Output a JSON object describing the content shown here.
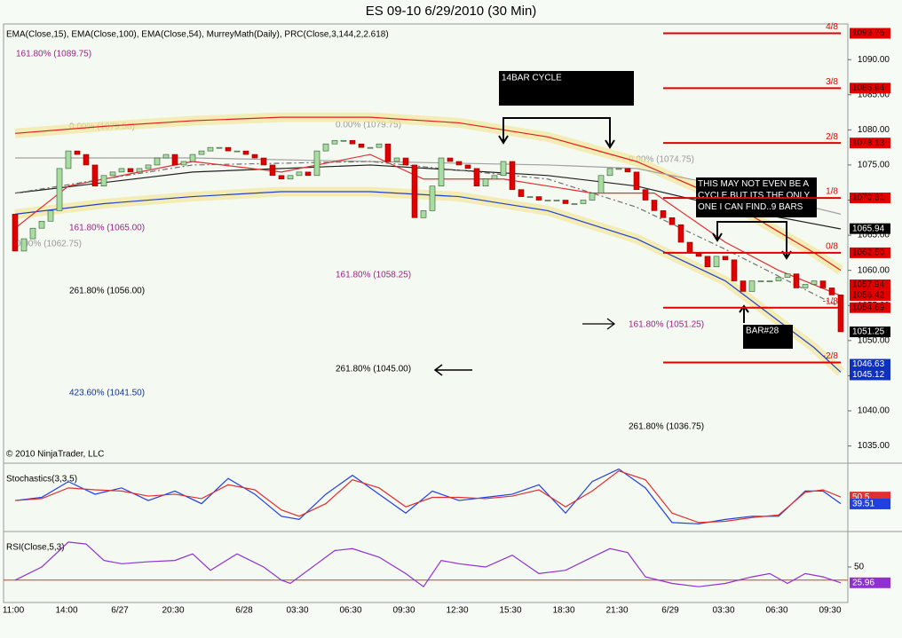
{
  "title": "ES 09-10  6/29/2010 (30 Min)",
  "indicator_header": "EMA(Close,15), EMA(Close,100), EMA(Close,54), MurreyMath(Daily), PRC(Close,3,144,2,2.618)",
  "copyright": "© 2010 NinjaTrader, LLC",
  "annotations": [
    "161.80% (1089.75)",
    "0.00% (1079.50)",
    "0.00% (1079.75)",
    "0.00% (1074.75)",
    "161.80% (1065.00)",
    "0.00% (1062.75)",
    "261.80% (1056.00)",
    "161.80% (1058.25)",
    "161.80% (1051.25)",
    "261.80% (1045.00)",
    "423.60% (1041.50)",
    "261.80% (1036.75)",
    "14BAR CYCLE",
    "THIS MAY NOT EVEN BE A CYCLE,BUT ITS THE ONLY ONE I CAN FIND..9 BARS",
    "BAR#28"
  ],
  "chart_data": [
    {
      "type": "candlestick",
      "categories": [
        "11:00",
        null,
        null,
        null,
        null,
        null,
        "14:00",
        null,
        null,
        null,
        null,
        null,
        "6/27",
        null,
        null,
        null,
        null,
        null,
        "20:30",
        null,
        null,
        null,
        null,
        null,
        null,
        null,
        "6/28",
        null,
        null,
        null,
        null,
        null,
        "03:30",
        null,
        null,
        null,
        null,
        null,
        "06:30",
        null,
        null,
        null,
        null,
        null,
        "09:30",
        null,
        null,
        null,
        null,
        null,
        "12:30",
        null,
        null,
        null,
        null,
        null,
        "15:30",
        null,
        null,
        null,
        null,
        null,
        "18:30",
        null,
        null,
        null,
        null,
        null,
        "21:30",
        null,
        null,
        null,
        null,
        null,
        "6/29",
        null,
        null,
        null,
        null,
        null,
        "03:30",
        null,
        null,
        null,
        null,
        null,
        "06:30",
        null,
        null,
        null,
        null,
        null,
        "09:30",
        null
      ],
      "open": [
        1068,
        1062.75,
        1064.5,
        1066,
        1067,
        1068.5,
        1074.5,
        1077,
        1076.5,
        1075,
        1072,
        1073.5,
        1074,
        1074.5,
        1074,
        1074.5,
        1075,
        1076,
        1076.5,
        1075,
        1075.5,
        1076.5,
        1077,
        1077.5,
        1077.5,
        1077,
        1077,
        1076.5,
        1076,
        1075,
        1073.5,
        1073,
        1073.5,
        1074,
        1073.5,
        1077,
        1078,
        1078.5,
        1078.5,
        1078,
        1077.5,
        1077.5,
        1078,
        1075.5,
        1076,
        1075,
        1067.5,
        1068.5,
        1072,
        1076,
        1075.5,
        1075,
        1074.5,
        1072,
        1073,
        1073.5,
        1075.5,
        1071.5,
        1070.5,
        1070.5,
        1070,
        1070,
        1070,
        1069.5,
        1069.5,
        1070,
        1071,
        1073.5,
        1074.5,
        1074.5,
        1074,
        1071.5,
        1070,
        1068.5,
        1067.5,
        1066.5,
        1064,
        1062.5,
        1062,
        1060.5,
        1062,
        1061.5,
        1058.5,
        1057,
        1058.5,
        1058.5,
        1058.5,
        1059,
        1059.5,
        1057.5,
        1058,
        1058.5,
        1057.5,
        1056.5
      ],
      "close": [
        1062.75,
        1064.5,
        1066,
        1067,
        1068.5,
        1074.5,
        1077,
        1076.5,
        1075,
        1072,
        1073.5,
        1074,
        1074.5,
        1074,
        1074.5,
        1075,
        1076,
        1076.5,
        1075,
        1075.5,
        1076.5,
        1077,
        1077.5,
        1077.5,
        1077,
        1077,
        1076.5,
        1076,
        1075,
        1073.5,
        1073,
        1073.5,
        1074,
        1073.5,
        1077,
        1078,
        1078.5,
        1078.5,
        1078,
        1077.5,
        1077.5,
        1078,
        1075.5,
        1076,
        1075,
        1067.5,
        1068.5,
        1072,
        1076,
        1075.5,
        1075,
        1074.5,
        1072,
        1073,
        1073.5,
        1075.5,
        1071.5,
        1070.5,
        1070.5,
        1070,
        1070,
        1070,
        1069.5,
        1069.5,
        1070,
        1071,
        1073.5,
        1074.5,
        1074.5,
        1074,
        1071.5,
        1070,
        1068.5,
        1067.5,
        1066.5,
        1064,
        1062.5,
        1062,
        1060.5,
        1062,
        1061.5,
        1058.5,
        1057,
        1058.5,
        1058.5,
        1058.5,
        1059,
        1059.5,
        1057.5,
        1058,
        1058.5,
        1057.5,
        1056.5,
        1051.25
      ],
      "up_color": "#a8dca0",
      "down_color": "#e00000",
      "ylim": [
        1032.8,
        1094.7
      ],
      "yticks": [
        {
          "value": 1035,
          "label": "1035.00"
        },
        {
          "value": 1040,
          "label": "1040.00"
        },
        {
          "value": 1045,
          "label": "1045.00"
        },
        {
          "value": 1050,
          "label": "1050.00"
        },
        {
          "value": 1055,
          "label": "1055.00"
        },
        {
          "value": 1060,
          "label": "1060.00"
        },
        {
          "value": 1065,
          "label": "1065.00"
        },
        {
          "value": 1070,
          "label": "1070.00"
        },
        {
          "value": 1075,
          "label": "1075.00"
        },
        {
          "value": 1080,
          "label": "1080.00"
        },
        {
          "value": 1085,
          "label": "1085.00"
        },
        {
          "value": 1090,
          "label": "1090.00"
        }
      ],
      "overlays": [
        {
          "color": "#e02020",
          "band": true,
          "x": [
            0,
            10,
            20,
            30,
            40,
            50,
            60,
            70,
            80,
            90,
            93
          ],
          "values": [
            1079.5,
            1080.5,
            1081.3,
            1081.8,
            1081.8,
            1081,
            1079,
            1075.5,
            1070,
            1062.5,
            1060
          ]
        },
        {
          "color": "#2040d0",
          "band": true,
          "x": [
            0,
            10,
            20,
            30,
            40,
            50,
            60,
            70,
            80,
            90,
            93
          ],
          "values": [
            1068,
            1069.5,
            1070.5,
            1071.2,
            1071.2,
            1070.5,
            1068.5,
            1064.5,
            1058.5,
            1049,
            1045.5
          ]
        },
        {
          "color": "#202020",
          "x": [
            0,
            20,
            40,
            60,
            70,
            80,
            93
          ],
          "values": [
            1071,
            1074,
            1075,
            1073.5,
            1072,
            1069,
            1065.9
          ]
        },
        {
          "color": "#a0a0a0",
          "x": [
            0,
            20,
            40,
            60,
            70,
            80,
            93
          ],
          "values": [
            1076,
            1076,
            1075.5,
            1075,
            1074.5,
            1072,
            1068
          ]
        },
        {
          "color": "#e03030",
          "x": [
            0,
            6,
            20,
            30,
            40,
            46,
            55,
            65,
            72,
            80,
            86,
            93
          ],
          "values": [
            1066,
            1072,
            1075.5,
            1074,
            1076.5,
            1073,
            1073,
            1071,
            1071,
            1064,
            1060,
            1056.4
          ]
        },
        {
          "color": "#707070",
          "dashed": true,
          "x": [
            0,
            20,
            40,
            60,
            70,
            80,
            93
          ],
          "values": [
            1071,
            1075,
            1075.5,
            1073,
            1069,
            1063,
            1054.7
          ]
        }
      ],
      "murray_levels": [
        {
          "value": 1093.75,
          "label": "4/8"
        },
        {
          "value": 1085.94,
          "label": "3/8"
        },
        {
          "value": 1078.13,
          "label": "2/8"
        },
        {
          "value": 1070.31,
          "label": "1/8"
        },
        {
          "value": 1062.5,
          "label": "0/8"
        },
        {
          "value": 1054.69,
          "label": "-1/8"
        },
        {
          "value": 1046.88,
          "label": "-2/8"
        }
      ],
      "murray_color": "#e00000",
      "right_labels": [
        {
          "value": 1093.75,
          "label": "1093.75",
          "color": "#e00000"
        },
        {
          "value": 1085.94,
          "label": "1085.94",
          "color": "#e00000"
        },
        {
          "value": 1078.13,
          "label": "1078.13",
          "color": "#e00000"
        },
        {
          "value": 1070.31,
          "label": "1070.31",
          "color": "#e00000"
        },
        {
          "value": 1065.94,
          "label": "1065.94",
          "color": "#000000"
        },
        {
          "value": 1062.5,
          "label": "1062.50",
          "color": "#e00000"
        },
        {
          "value": 1057.94,
          "label": "1057.94",
          "color": "#e00000"
        },
        {
          "value": 1056.42,
          "label": "1056.42",
          "color": "#e00000"
        },
        {
          "value": 1054.69,
          "label": "1054.69",
          "color": "#e00000"
        },
        {
          "value": 1051.25,
          "label": "1051.25",
          "color": "#000000"
        },
        {
          "value": 1046.63,
          "label": "1046.63",
          "color": "#1030c0"
        },
        {
          "value": 1045.12,
          "label": "1045.12",
          "color": "#1030c0"
        }
      ]
    },
    {
      "type": "line",
      "title": "Stochastics(3,3,5)",
      "ylim": [
        0,
        100
      ],
      "series": [
        {
          "color": "#2040e0",
          "x": [
            0,
            3,
            6,
            9,
            12,
            15,
            18,
            21,
            24,
            27,
            30,
            32,
            35,
            38,
            41,
            44,
            47,
            50,
            53,
            56,
            59,
            62,
            65,
            68,
            71,
            74,
            77,
            80,
            83,
            86,
            89,
            91,
            93
          ],
          "values": [
            45,
            50,
            75,
            55,
            65,
            45,
            60,
            40,
            80,
            55,
            20,
            15,
            55,
            85,
            55,
            25,
            60,
            45,
            50,
            55,
            70,
            25,
            75,
            95,
            65,
            10,
            8,
            15,
            20,
            20,
            60,
            60,
            40
          ]
        },
        {
          "color": "#e03030",
          "x": [
            0,
            3,
            6,
            9,
            12,
            15,
            18,
            21,
            24,
            27,
            30,
            32,
            35,
            38,
            41,
            44,
            47,
            50,
            53,
            56,
            59,
            62,
            65,
            68,
            71,
            74,
            77,
            80,
            83,
            86,
            89,
            91,
            93
          ],
          "values": [
            45,
            48,
            65,
            62,
            60,
            52,
            55,
            48,
            70,
            62,
            30,
            20,
            40,
            78,
            65,
            35,
            50,
            50,
            48,
            52,
            62,
            35,
            60,
            92,
            78,
            25,
            10,
            12,
            18,
            22,
            58,
            62,
            50.5
          ]
        }
      ],
      "right_labels": [
        {
          "value": 50.5,
          "label": "50.5",
          "color": "#e03030"
        },
        {
          "value": 39.51,
          "label": "39.51",
          "color": "#2040e0"
        }
      ]
    },
    {
      "type": "line",
      "title": "RSI(Close,5,3)",
      "ylim": [
        0,
        100
      ],
      "yticks": [
        50
      ],
      "levels": [
        30
      ],
      "level_color": "#e03030",
      "series": [
        {
          "color": "#9030d0",
          "x": [
            0,
            3,
            6,
            8,
            10,
            12,
            15,
            18,
            20,
            22,
            25,
            28,
            30,
            31,
            34,
            36,
            38,
            41,
            44,
            46,
            48,
            50,
            53,
            56,
            59,
            62,
            65,
            67,
            69,
            71,
            74,
            77,
            80,
            83,
            85,
            87,
            89,
            91,
            93
          ],
          "values": [
            30,
            50,
            88,
            85,
            60,
            55,
            58,
            60,
            70,
            45,
            70,
            50,
            30,
            25,
            55,
            75,
            78,
            65,
            40,
            20,
            60,
            55,
            50,
            68,
            40,
            45,
            65,
            78,
            72,
            35,
            25,
            20,
            25,
            35,
            40,
            25,
            40,
            35,
            26
          ]
        }
      ],
      "right_labels": [
        {
          "value": 25.96,
          "label": "25.96",
          "color": "#9030d0"
        }
      ]
    }
  ]
}
